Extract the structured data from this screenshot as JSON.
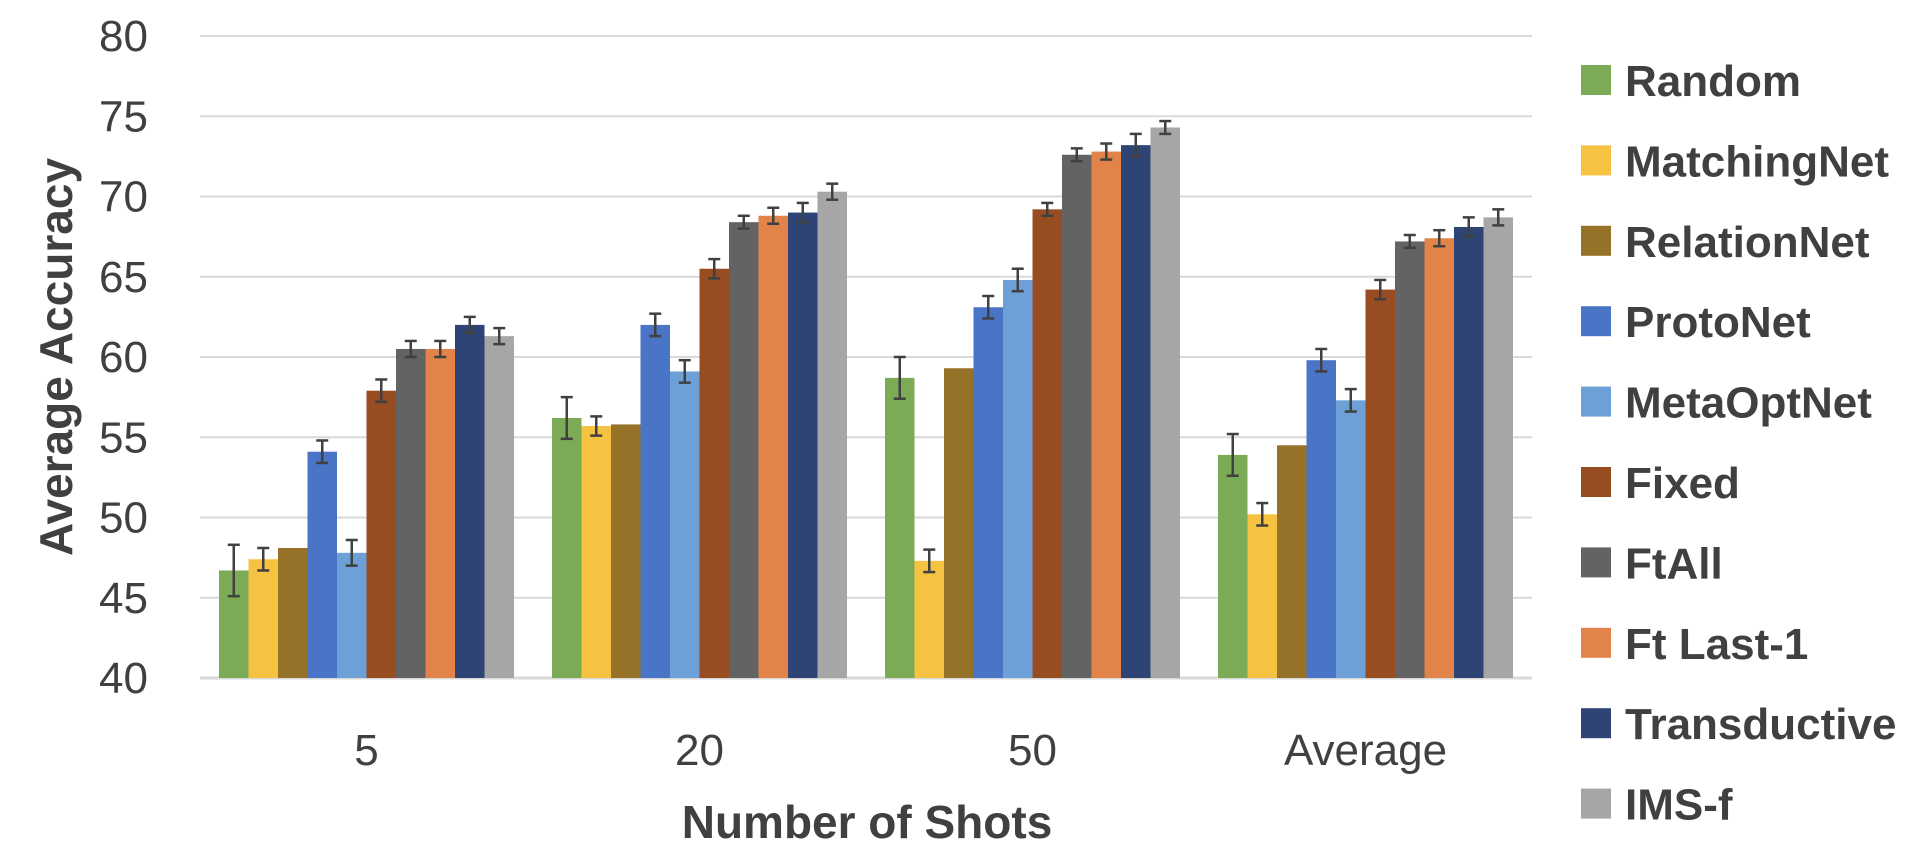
{
  "chart_data": {
    "type": "bar",
    "title": "",
    "xlabel": "Number of Shots",
    "ylabel": "Average Accuracy",
    "ylim": [
      40,
      80
    ],
    "yticks": [
      40,
      45,
      50,
      55,
      60,
      65,
      70,
      75,
      80
    ],
    "ytick_labels": [
      "40",
      "45",
      "50",
      "55",
      "60",
      "65",
      "70",
      "75",
      "80"
    ],
    "grid": true,
    "legend_position": "right",
    "categories": [
      "5",
      "20",
      "50",
      "Average"
    ],
    "series": [
      {
        "name": "Random",
        "color": "#7cab55",
        "values": [
          46.7,
          56.2,
          58.7,
          53.9
        ],
        "errors": [
          1.6,
          1.3,
          1.3,
          1.3
        ]
      },
      {
        "name": "MatchingNet",
        "color": "#f5c242",
        "values": [
          47.4,
          55.7,
          47.3,
          50.2
        ],
        "errors": [
          0.7,
          0.6,
          0.7,
          0.7
        ]
      },
      {
        "name": "RelationNet",
        "color": "#957227",
        "values": [
          48.1,
          55.8,
          59.3,
          54.5
        ],
        "errors": [
          0,
          0,
          0,
          0
        ]
      },
      {
        "name": "ProtoNet",
        "color": "#4a74c5",
        "values": [
          54.1,
          62.0,
          63.1,
          59.8
        ],
        "errors": [
          0.7,
          0.7,
          0.7,
          0.7
        ]
      },
      {
        "name": "MetaOptNet",
        "color": "#6da0d6",
        "values": [
          47.8,
          59.1,
          64.8,
          57.3
        ],
        "errors": [
          0.8,
          0.7,
          0.7,
          0.7
        ]
      },
      {
        "name": "Fixed",
        "color": "#984c22",
        "values": [
          57.9,
          65.5,
          69.2,
          64.2
        ],
        "errors": [
          0.7,
          0.6,
          0.4,
          0.6
        ]
      },
      {
        "name": "FtAll",
        "color": "#636363",
        "values": [
          60.5,
          68.4,
          72.6,
          67.2
        ],
        "errors": [
          0.5,
          0.4,
          0.4,
          0.4
        ]
      },
      {
        "name": "Ft Last-1",
        "color": "#e2834a",
        "values": [
          60.5,
          68.8,
          72.8,
          67.4
        ],
        "errors": [
          0.5,
          0.5,
          0.5,
          0.5
        ]
      },
      {
        "name": "Transductive",
        "color": "#2d4474",
        "values": [
          62.0,
          69.0,
          73.2,
          68.1
        ],
        "errors": [
          0.5,
          0.6,
          0.7,
          0.6
        ]
      },
      {
        "name": "IMS-f",
        "color": "#a6a6a6",
        "values": [
          61.3,
          70.3,
          74.3,
          68.7
        ],
        "errors": [
          0.5,
          0.5,
          0.4,
          0.5
        ]
      }
    ]
  }
}
